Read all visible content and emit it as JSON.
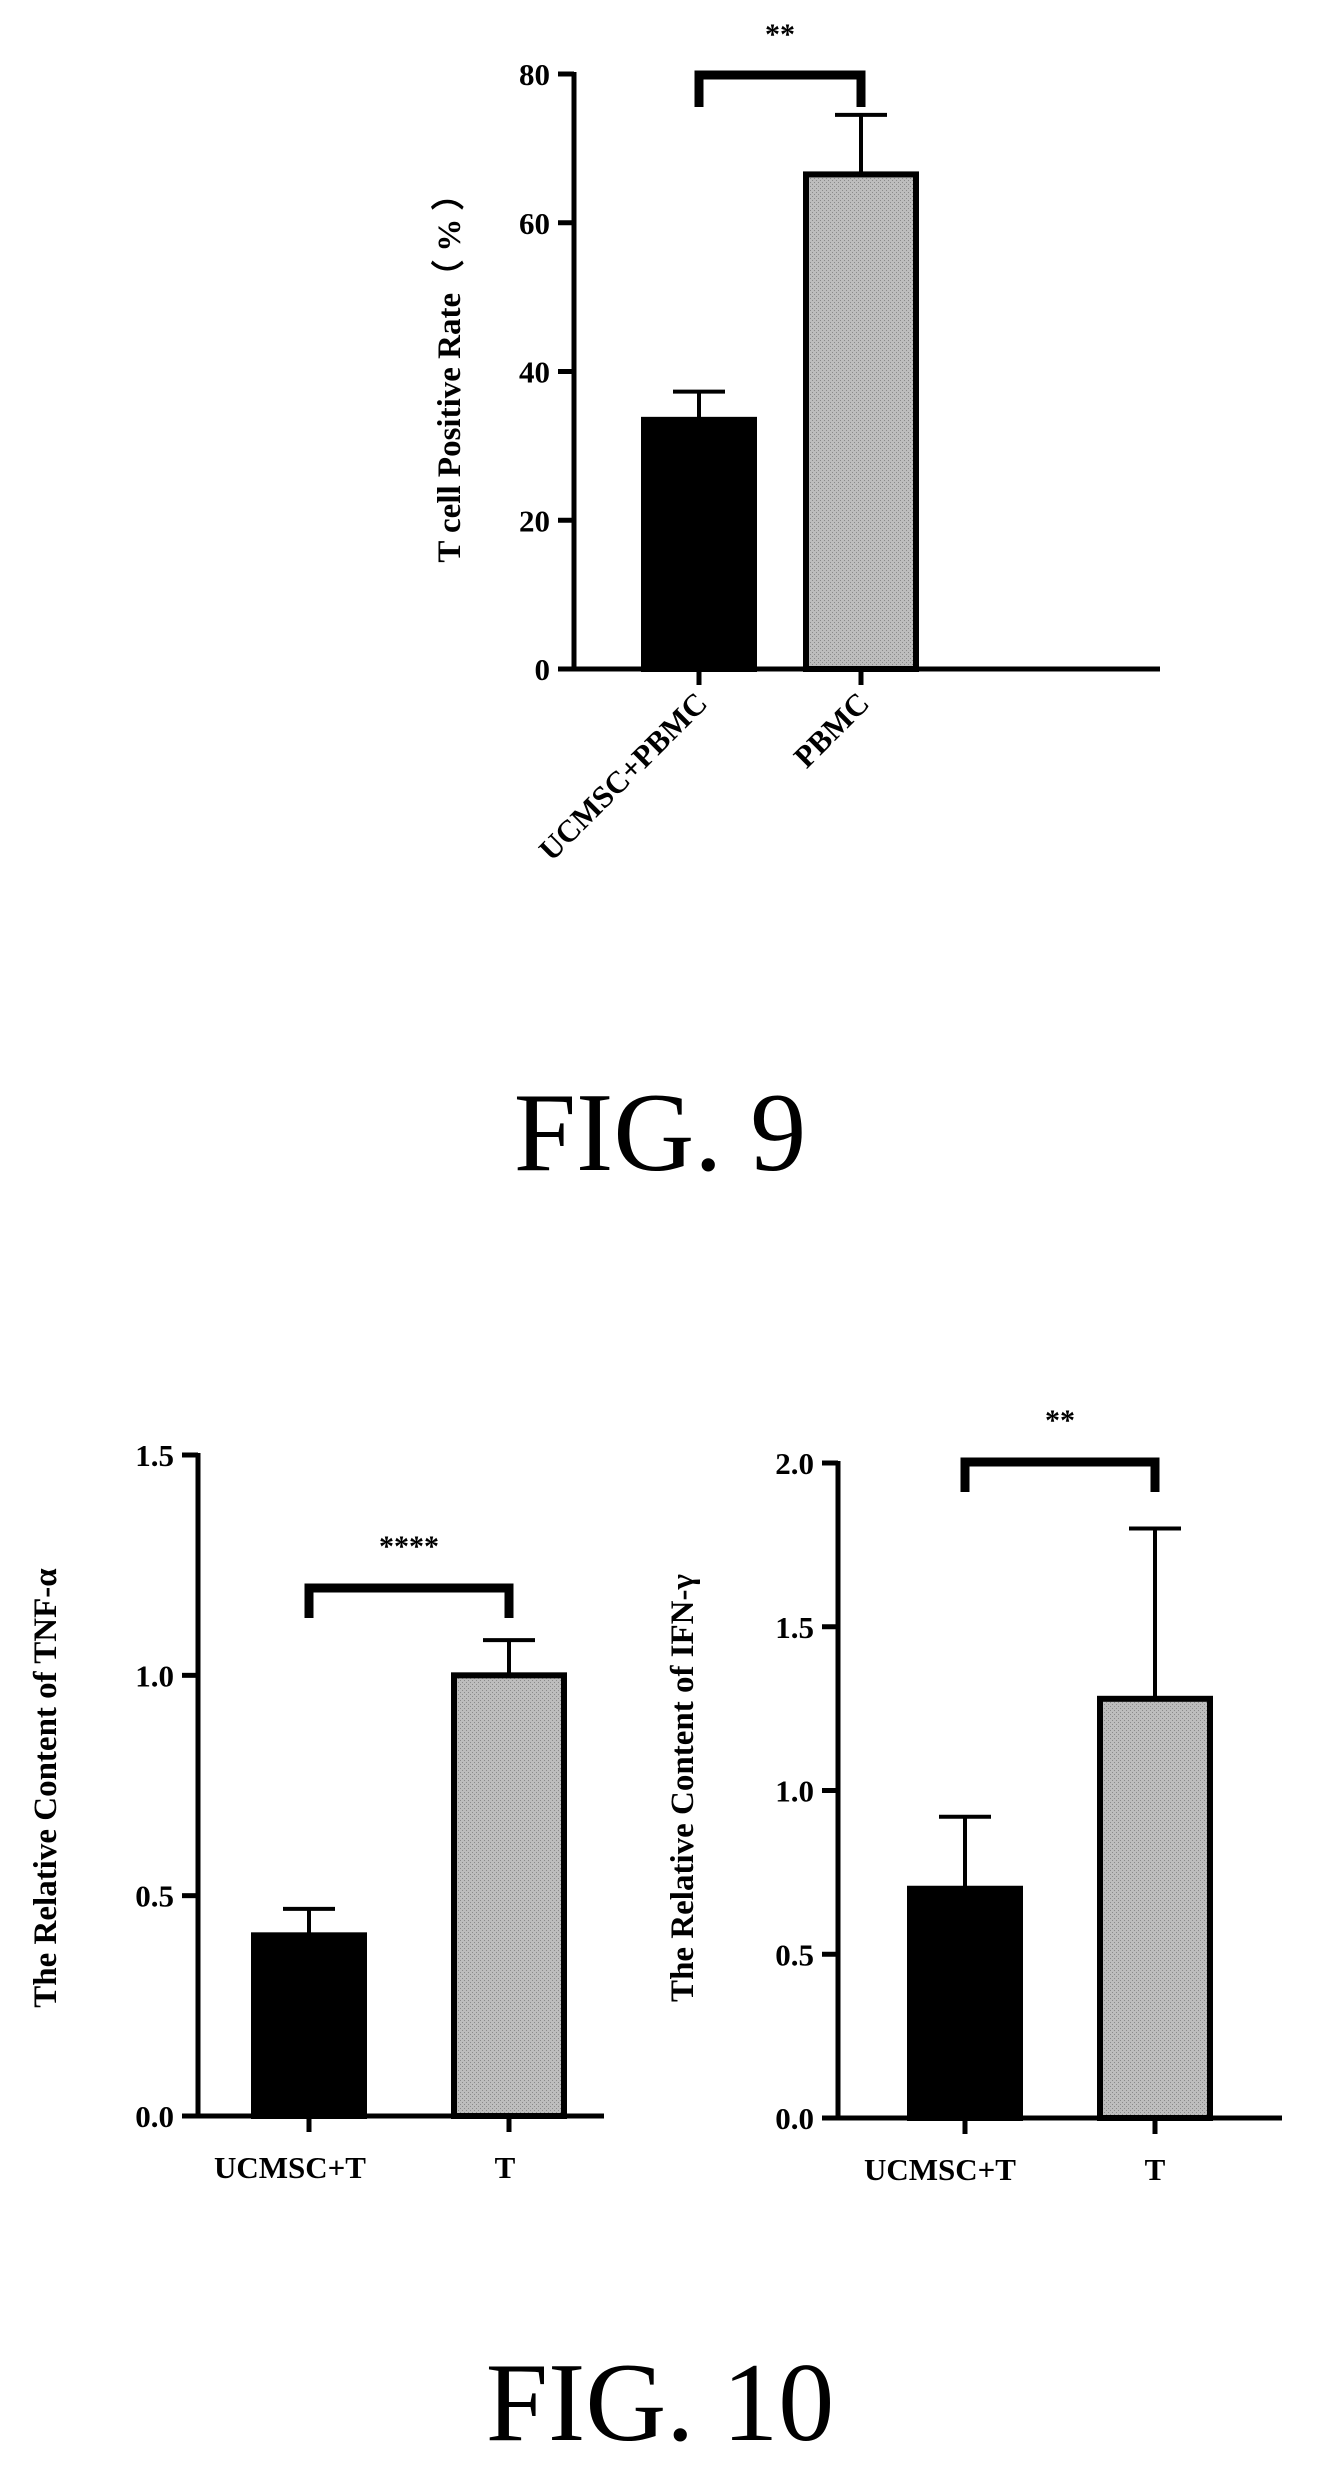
{
  "figure_labels": [
    "FIG. 9",
    "FIG. 10"
  ],
  "chart_data": [
    {
      "type": "bar",
      "ylabel": "T cell Positive Rate（ % ）",
      "ylim": [
        0,
        80
      ],
      "yticks": [
        "0",
        "20",
        "40",
        "60",
        "80"
      ],
      "categories": [
        "UCMSC+PBMC",
        "PBMC"
      ],
      "values": [
        33.5,
        66.5
      ],
      "error": [
        3.8,
        8.0
      ],
      "bar_fill": [
        "#000000",
        "#b3b3b3"
      ],
      "significance": "**"
    },
    {
      "type": "bar",
      "ylabel": "The Relative Content of TNF-α",
      "ylim": [
        0,
        1.5
      ],
      "yticks": [
        "0.0",
        "0.5",
        "1.0",
        "1.5"
      ],
      "categories": [
        "UCMSC+T",
        "T"
      ],
      "values": [
        0.41,
        1.0
      ],
      "error": [
        0.06,
        0.08
      ],
      "bar_fill": [
        "#000000",
        "#b3b3b3"
      ],
      "significance": "****"
    },
    {
      "type": "bar",
      "ylabel": "The Relative Content of IFN-γ",
      "ylim": [
        0,
        2.0
      ],
      "yticks": [
        "0.0",
        "0.5",
        "1.0",
        "1.5",
        "2.0"
      ],
      "categories": [
        "UCMSC+T",
        "T"
      ],
      "values": [
        0.7,
        1.28
      ],
      "error": [
        0.22,
        0.52
      ],
      "bar_fill": [
        "#000000",
        "#b3b3b3"
      ],
      "significance": "**"
    }
  ]
}
